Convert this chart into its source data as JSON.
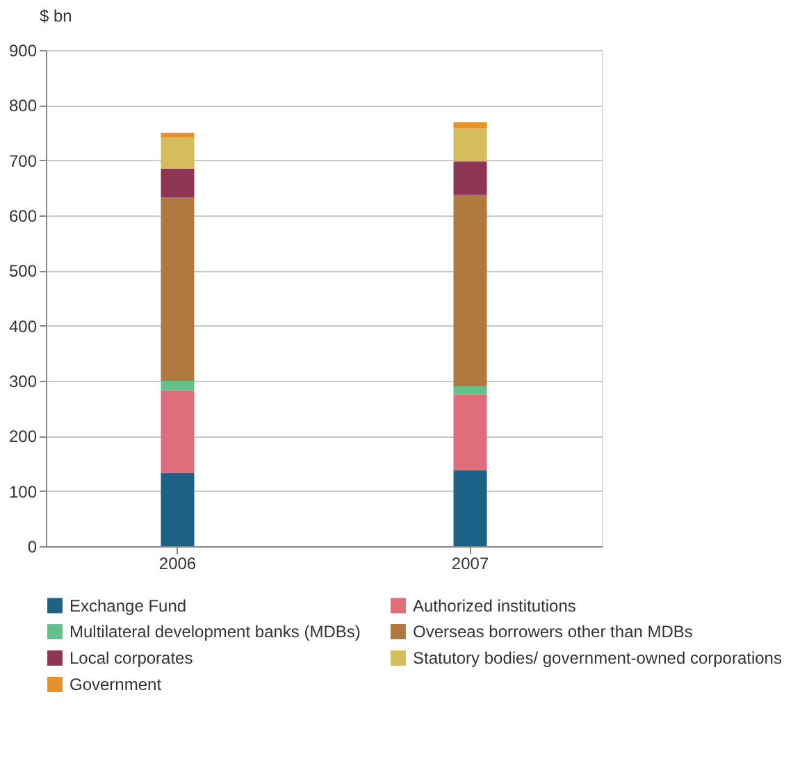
{
  "chart_data": {
    "type": "bar",
    "stacked": true,
    "categories": [
      "2006",
      "2007"
    ],
    "ylabel": "$ bn",
    "ylim": [
      0,
      900
    ],
    "yticks": [
      0,
      100,
      200,
      300,
      400,
      500,
      600,
      700,
      800,
      900
    ],
    "grid": "y",
    "legend": "bottom",
    "series": [
      {
        "name": "Exchange Fund",
        "color": "#1b6286",
        "values": [
          133,
          138
        ]
      },
      {
        "name": "Authorized institutions",
        "color": "#df6e7a",
        "values": [
          149,
          137
        ]
      },
      {
        "name": "Multilateral development banks (MDBs)",
        "color": "#63c08b",
        "values": [
          18,
          15
        ]
      },
      {
        "name": "Overseas borrowers other than MDBs",
        "color": "#b07a3e",
        "values": [
          332,
          347
        ]
      },
      {
        "name": "Local corporates",
        "color": "#8e3556",
        "values": [
          53,
          61
        ]
      },
      {
        "name": "Statutory bodies/ government-owned corporations",
        "color": "#d4bd5a",
        "values": [
          56,
          60
        ]
      },
      {
        "name": "Government",
        "color": "#e8902a",
        "values": [
          9,
          11
        ]
      }
    ]
  }
}
